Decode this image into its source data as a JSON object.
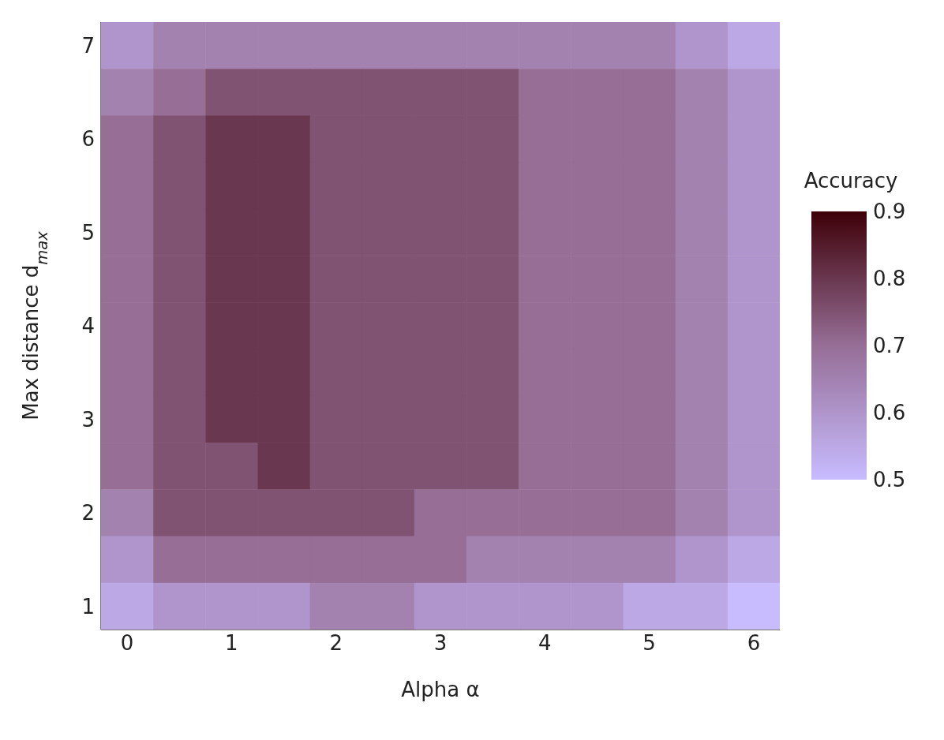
{
  "chart_data": {
    "type": "heatmap",
    "xlabel": "Alpha α",
    "ylabel": "Max distance d$_{max}$",
    "clabel": "Accuracy",
    "categories": [
      "0",
      null,
      "1",
      null,
      "2",
      null,
      "3",
      null,
      "4",
      null,
      "5",
      null,
      "6"
    ],
    "y_categories": [
      "7",
      null,
      "6",
      null,
      "5",
      null,
      "4",
      null,
      "3",
      null,
      "2",
      null,
      "1"
    ],
    "cells": [
      [
        0.6,
        0.65,
        0.65,
        0.65,
        0.65,
        0.65,
        0.65,
        0.65,
        0.65,
        0.65,
        0.65,
        0.6,
        0.55
      ],
      [
        0.65,
        0.7,
        0.75,
        0.75,
        0.75,
        0.75,
        0.75,
        0.75,
        0.7,
        0.7,
        0.7,
        0.65,
        0.6
      ],
      [
        0.7,
        0.75,
        0.8,
        0.8,
        0.75,
        0.75,
        0.75,
        0.75,
        0.7,
        0.7,
        0.7,
        0.65,
        0.6
      ],
      [
        0.7,
        0.75,
        0.8,
        0.8,
        0.75,
        0.75,
        0.75,
        0.75,
        0.7,
        0.7,
        0.7,
        0.65,
        0.6
      ],
      [
        0.7,
        0.75,
        0.8,
        0.8,
        0.75,
        0.75,
        0.75,
        0.75,
        0.7,
        0.7,
        0.7,
        0.65,
        0.6
      ],
      [
        0.7,
        0.75,
        0.8,
        0.8,
        0.75,
        0.75,
        0.75,
        0.75,
        0.7,
        0.7,
        0.7,
        0.65,
        0.6
      ],
      [
        0.7,
        0.75,
        0.8,
        0.8,
        0.75,
        0.75,
        0.75,
        0.75,
        0.7,
        0.7,
        0.7,
        0.65,
        0.6
      ],
      [
        0.7,
        0.75,
        0.8,
        0.8,
        0.75,
        0.75,
        0.75,
        0.75,
        0.7,
        0.7,
        0.7,
        0.65,
        0.6
      ],
      [
        0.7,
        0.75,
        0.8,
        0.8,
        0.75,
        0.75,
        0.75,
        0.75,
        0.7,
        0.7,
        0.7,
        0.65,
        0.6
      ],
      [
        0.7,
        0.75,
        0.75,
        0.8,
        0.75,
        0.75,
        0.75,
        0.75,
        0.7,
        0.7,
        0.7,
        0.65,
        0.6
      ],
      [
        0.65,
        0.75,
        0.75,
        0.75,
        0.75,
        0.75,
        0.7,
        0.7,
        0.7,
        0.7,
        0.7,
        0.65,
        0.6
      ],
      [
        0.6,
        0.7,
        0.7,
        0.7,
        0.7,
        0.7,
        0.7,
        0.65,
        0.65,
        0.65,
        0.65,
        0.6,
        0.55
      ],
      [
        0.55,
        0.6,
        0.6,
        0.6,
        0.65,
        0.65,
        0.6,
        0.6,
        0.6,
        0.6,
        0.55,
        0.55,
        0.5
      ]
    ],
    "clim": [
      0.5,
      0.9
    ],
    "cticks": [
      0.5,
      0.6,
      0.7,
      0.8,
      0.9
    ]
  }
}
